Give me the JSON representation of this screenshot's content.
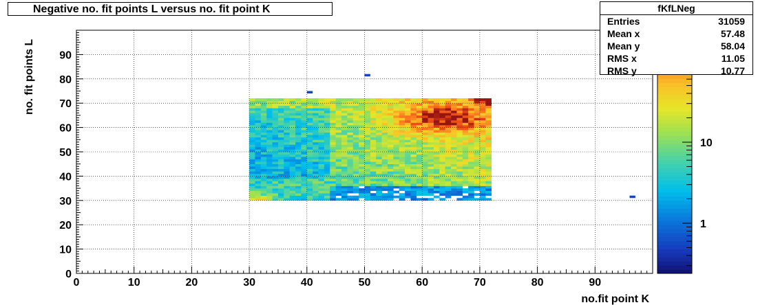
{
  "chart_data": {
    "type": "heatmap",
    "title": "Negative no. fit points L versus no. fit point K",
    "xlabel": "no.fit point K",
    "ylabel": "no. fit points  L",
    "xlim": [
      0,
      100
    ],
    "ylim": [
      0,
      100
    ],
    "x_ticks": [
      "0",
      "10",
      "20",
      "30",
      "40",
      "50",
      "60",
      "70",
      "80",
      "90"
    ],
    "y_ticks": [
      "0",
      "10",
      "20",
      "30",
      "40",
      "50",
      "60",
      "70",
      "80",
      "90"
    ],
    "grid": true,
    "colorbar": {
      "scale": "log",
      "tick_labels": [
        "1",
        "10"
      ]
    },
    "populated_region": {
      "x_range": [
        30,
        72
      ],
      "y_range": [
        30,
        72
      ]
    },
    "hotspots": [
      {
        "x": 63,
        "y": 63,
        "level": "max"
      },
      {
        "x": 71,
        "y": 71,
        "level": "max"
      },
      {
        "x": 31,
        "y": 30,
        "level": "high"
      }
    ],
    "outliers": [
      {
        "x": 40,
        "y": 74
      },
      {
        "x": 50,
        "y": 81
      },
      {
        "x": 96,
        "y": 31
      }
    ]
  },
  "stats": {
    "name": "fKfLNeg",
    "rows": [
      {
        "label": "Entries",
        "value": "31059"
      },
      {
        "label": "Mean x",
        "value": "57.48"
      },
      {
        "label": "Mean y",
        "value": "58.04"
      },
      {
        "label": "RMS x",
        "value": "11.05"
      },
      {
        "label": "RMS y",
        "value": "10.77"
      }
    ]
  }
}
